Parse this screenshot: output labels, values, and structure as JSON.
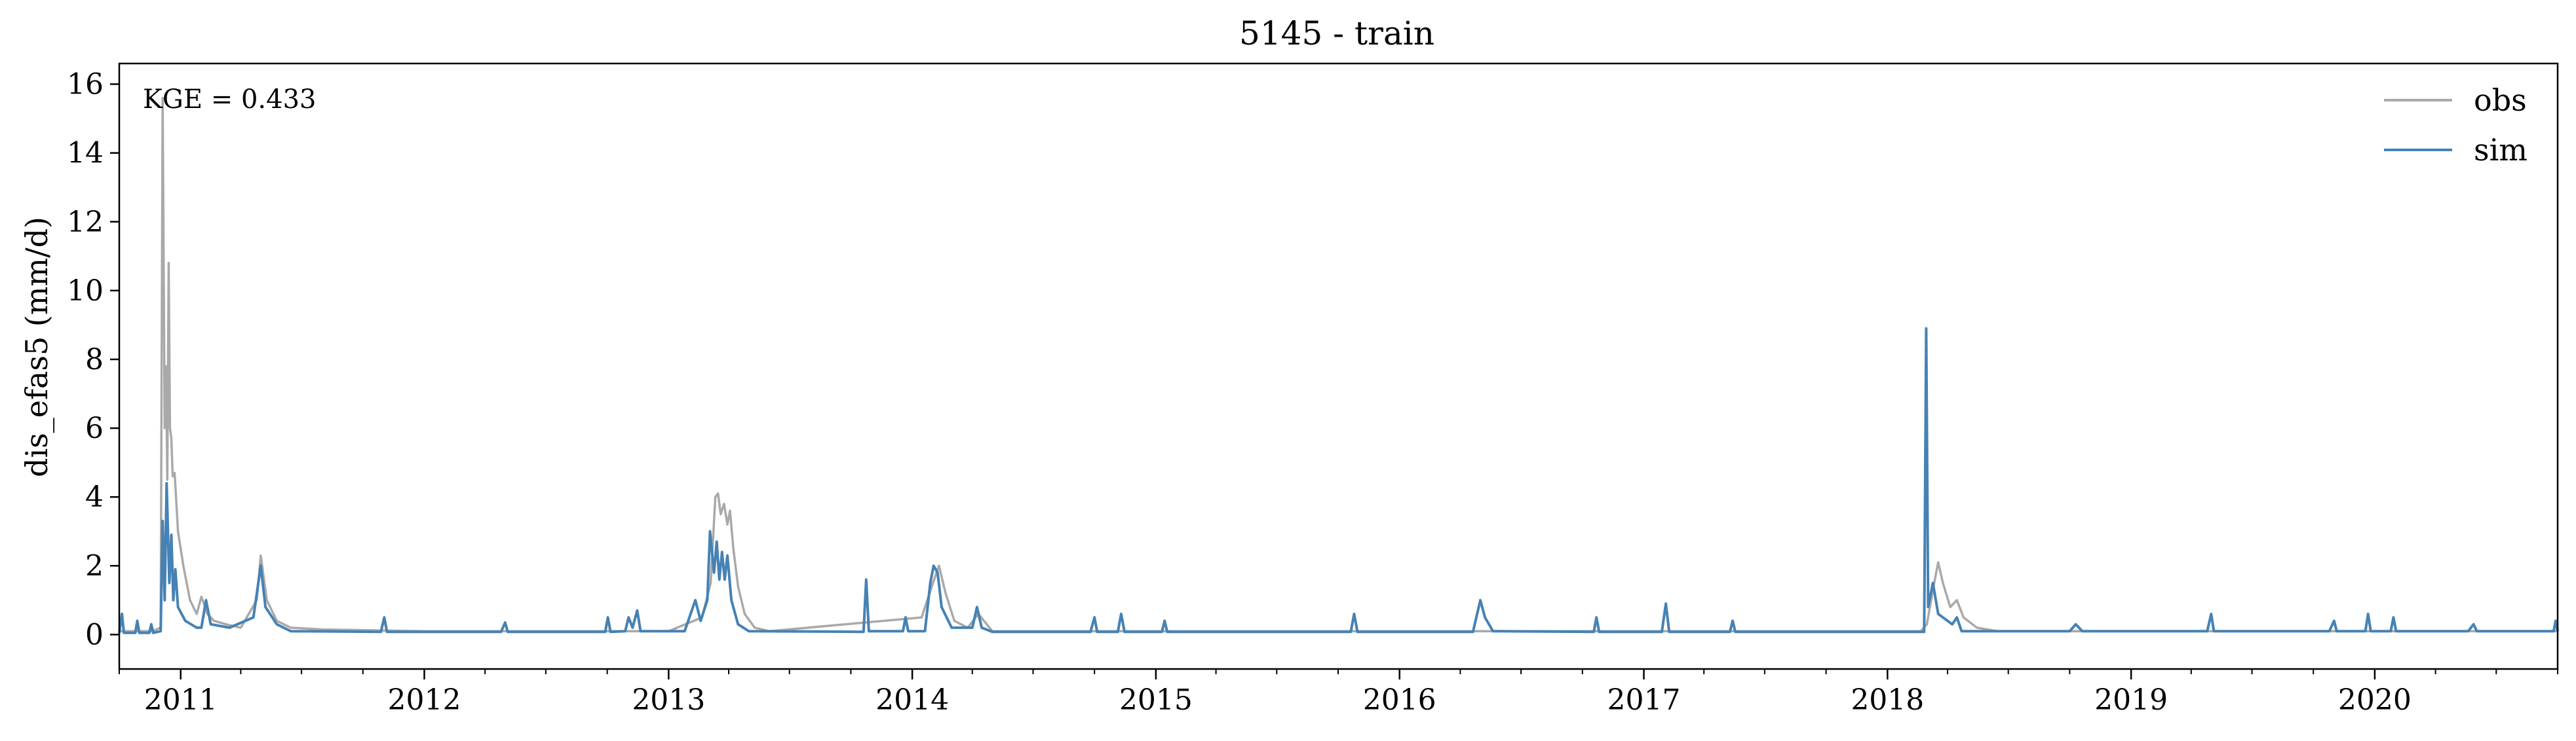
{
  "chart_data": {
    "type": "line",
    "title": "5145 - train",
    "ylabel": "dis_efas5 (mm/d)",
    "xlabel": "",
    "annotation": "KGE = 0.433",
    "xlim": [
      "2010-10-01",
      "2020-10-01"
    ],
    "ylim": [
      -1,
      16.6
    ],
    "yticks": [
      0,
      2,
      4,
      6,
      8,
      10,
      12,
      14,
      16
    ],
    "xticks": [
      {
        "date": "2011-01-01",
        "label": "2011"
      },
      {
        "date": "2012-01-01",
        "label": "2012"
      },
      {
        "date": "2013-01-01",
        "label": "2013"
      },
      {
        "date": "2014-01-01",
        "label": "2014"
      },
      {
        "date": "2015-01-01",
        "label": "2015"
      },
      {
        "date": "2016-01-01",
        "label": "2016"
      },
      {
        "date": "2017-01-01",
        "label": "2017"
      },
      {
        "date": "2018-01-01",
        "label": "2018"
      },
      {
        "date": "2019-01-01",
        "label": "2019"
      },
      {
        "date": "2020-01-01",
        "label": "2020"
      }
    ],
    "legend": {
      "position": "top-right"
    },
    "grid": false,
    "series": [
      {
        "name": "obs",
        "color": "#a9a9a9",
        "points": [
          [
            "2010-10-01",
            0.1
          ],
          [
            "2010-10-20",
            0.1
          ],
          [
            "2010-11-20",
            0.1
          ],
          [
            "2010-12-02",
            0.2
          ],
          [
            "2010-12-05",
            15.6
          ],
          [
            "2010-12-08",
            6.0
          ],
          [
            "2010-12-10",
            7.8
          ],
          [
            "2010-12-12",
            4.5
          ],
          [
            "2010-12-14",
            10.8
          ],
          [
            "2010-12-16",
            6.0
          ],
          [
            "2010-12-18",
            5.7
          ],
          [
            "2010-12-20",
            4.6
          ],
          [
            "2010-12-23",
            4.7
          ],
          [
            "2010-12-28",
            3.0
          ],
          [
            "2011-01-05",
            2.0
          ],
          [
            "2011-01-15",
            1.0
          ],
          [
            "2011-01-25",
            0.6
          ],
          [
            "2011-02-01",
            1.1
          ],
          [
            "2011-02-10",
            0.6
          ],
          [
            "2011-02-20",
            0.4
          ],
          [
            "2011-03-10",
            0.3
          ],
          [
            "2011-04-01",
            0.2
          ],
          [
            "2011-04-25",
            1.0
          ],
          [
            "2011-05-01",
            2.3
          ],
          [
            "2011-05-10",
            1.0
          ],
          [
            "2011-05-25",
            0.4
          ],
          [
            "2011-06-15",
            0.2
          ],
          [
            "2011-08-01",
            0.15
          ],
          [
            "2012-01-01",
            0.1
          ],
          [
            "2012-06-01",
            0.1
          ],
          [
            "2013-01-01",
            0.1
          ],
          [
            "2013-02-20",
            0.5
          ],
          [
            "2013-03-05",
            1.5
          ],
          [
            "2013-03-12",
            4.0
          ],
          [
            "2013-03-16",
            4.1
          ],
          [
            "2013-03-20",
            3.5
          ],
          [
            "2013-03-25",
            3.8
          ],
          [
            "2013-03-30",
            3.2
          ],
          [
            "2013-04-03",
            3.6
          ],
          [
            "2013-04-08",
            2.5
          ],
          [
            "2013-04-15",
            1.4
          ],
          [
            "2013-04-25",
            0.6
          ],
          [
            "2013-05-10",
            0.2
          ],
          [
            "2013-06-01",
            0.1
          ],
          [
            "2014-01-15",
            0.5
          ],
          [
            "2014-02-01",
            1.5
          ],
          [
            "2014-02-10",
            2.0
          ],
          [
            "2014-02-20",
            1.2
          ],
          [
            "2014-03-05",
            0.4
          ],
          [
            "2014-03-25",
            0.2
          ],
          [
            "2014-04-10",
            0.6
          ],
          [
            "2014-05-01",
            0.1
          ],
          [
            "2018-02-20",
            0.1
          ],
          [
            "2018-03-01",
            0.3
          ],
          [
            "2018-03-12",
            1.5
          ],
          [
            "2018-03-18",
            2.1
          ],
          [
            "2018-03-25",
            1.5
          ],
          [
            "2018-04-05",
            0.8
          ],
          [
            "2018-04-15",
            1.0
          ],
          [
            "2018-04-25",
            0.5
          ],
          [
            "2018-05-15",
            0.2
          ],
          [
            "2018-06-15",
            0.1
          ],
          [
            "2019-01-01",
            0.1
          ],
          [
            "2020-10-01",
            0.1
          ]
        ]
      },
      {
        "name": "sim",
        "color": "#4682b4",
        "points": [
          [
            "2010-10-01",
            0.05
          ],
          [
            "2010-10-05",
            0.6
          ],
          [
            "2010-10-08",
            0.05
          ],
          [
            "2010-10-25",
            0.05
          ],
          [
            "2010-10-28",
            0.4
          ],
          [
            "2010-10-31",
            0.05
          ],
          [
            "2010-11-15",
            0.05
          ],
          [
            "2010-11-18",
            0.3
          ],
          [
            "2010-11-21",
            0.05
          ],
          [
            "2010-12-02",
            0.1
          ],
          [
            "2010-12-05",
            3.3
          ],
          [
            "2010-12-08",
            1.0
          ],
          [
            "2010-12-11",
            4.4
          ],
          [
            "2010-12-15",
            1.5
          ],
          [
            "2010-12-18",
            2.9
          ],
          [
            "2010-12-21",
            1.0
          ],
          [
            "2010-12-24",
            1.9
          ],
          [
            "2010-12-28",
            0.8
          ],
          [
            "2011-01-08",
            0.4
          ],
          [
            "2011-01-25",
            0.2
          ],
          [
            "2011-02-01",
            0.2
          ],
          [
            "2011-02-08",
            1.0
          ],
          [
            "2011-02-15",
            0.3
          ],
          [
            "2011-03-15",
            0.2
          ],
          [
            "2011-04-20",
            0.5
          ],
          [
            "2011-05-01",
            2.0
          ],
          [
            "2011-05-08",
            0.8
          ],
          [
            "2011-05-25",
            0.3
          ],
          [
            "2011-06-15",
            0.1
          ],
          [
            "2011-10-28",
            0.08
          ],
          [
            "2011-11-02",
            0.5
          ],
          [
            "2011-11-06",
            0.08
          ],
          [
            "2012-04-25",
            0.08
          ],
          [
            "2012-05-01",
            0.35
          ],
          [
            "2012-05-05",
            0.08
          ],
          [
            "2012-09-28",
            0.08
          ],
          [
            "2012-10-02",
            0.5
          ],
          [
            "2012-10-06",
            0.08
          ],
          [
            "2012-10-28",
            0.1
          ],
          [
            "2012-11-02",
            0.5
          ],
          [
            "2012-11-08",
            0.2
          ],
          [
            "2012-11-15",
            0.7
          ],
          [
            "2012-11-20",
            0.1
          ],
          [
            "2013-01-25",
            0.1
          ],
          [
            "2013-02-10",
            1.0
          ],
          [
            "2013-02-18",
            0.4
          ],
          [
            "2013-02-28",
            1.0
          ],
          [
            "2013-03-04",
            3.0
          ],
          [
            "2013-03-10",
            1.8
          ],
          [
            "2013-03-14",
            2.7
          ],
          [
            "2013-03-18",
            1.6
          ],
          [
            "2013-03-22",
            2.4
          ],
          [
            "2013-03-26",
            1.6
          ],
          [
            "2013-03-30",
            2.3
          ],
          [
            "2013-04-05",
            1.0
          ],
          [
            "2013-04-15",
            0.3
          ],
          [
            "2013-05-01",
            0.1
          ],
          [
            "2013-10-20",
            0.08
          ],
          [
            "2013-10-24",
            1.6
          ],
          [
            "2013-10-28",
            0.1
          ],
          [
            "2013-12-18",
            0.1
          ],
          [
            "2013-12-22",
            0.5
          ],
          [
            "2013-12-26",
            0.1
          ],
          [
            "2014-01-20",
            0.1
          ],
          [
            "2014-01-28",
            1.5
          ],
          [
            "2014-02-02",
            2.0
          ],
          [
            "2014-02-08",
            1.8
          ],
          [
            "2014-02-14",
            0.8
          ],
          [
            "2014-03-01",
            0.2
          ],
          [
            "2014-04-01",
            0.2
          ],
          [
            "2014-04-08",
            0.8
          ],
          [
            "2014-04-15",
            0.2
          ],
          [
            "2014-05-01",
            0.08
          ],
          [
            "2014-09-25",
            0.08
          ],
          [
            "2014-10-01",
            0.5
          ],
          [
            "2014-10-05",
            0.08
          ],
          [
            "2014-11-05",
            0.08
          ],
          [
            "2014-11-10",
            0.6
          ],
          [
            "2014-11-15",
            0.08
          ],
          [
            "2015-01-10",
            0.08
          ],
          [
            "2015-01-14",
            0.4
          ],
          [
            "2015-01-18",
            0.08
          ],
          [
            "2015-10-20",
            0.08
          ],
          [
            "2015-10-25",
            0.6
          ],
          [
            "2015-10-30",
            0.08
          ],
          [
            "2016-04-20",
            0.08
          ],
          [
            "2016-05-01",
            1.0
          ],
          [
            "2016-05-08",
            0.5
          ],
          [
            "2016-05-20",
            0.1
          ],
          [
            "2016-10-18",
            0.08
          ],
          [
            "2016-10-22",
            0.5
          ],
          [
            "2016-10-26",
            0.08
          ],
          [
            "2017-01-28",
            0.08
          ],
          [
            "2017-02-03",
            0.9
          ],
          [
            "2017-02-08",
            0.08
          ],
          [
            "2017-05-10",
            0.08
          ],
          [
            "2017-05-14",
            0.4
          ],
          [
            "2017-05-18",
            0.08
          ],
          [
            "2018-02-25",
            0.08
          ],
          [
            "2018-02-28",
            8.9
          ],
          [
            "2018-03-03",
            0.8
          ],
          [
            "2018-03-10",
            1.5
          ],
          [
            "2018-03-18",
            0.6
          ],
          [
            "2018-04-08",
            0.3
          ],
          [
            "2018-04-15",
            0.5
          ],
          [
            "2018-04-22",
            0.1
          ],
          [
            "2018-10-01",
            0.1
          ],
          [
            "2018-10-10",
            0.3
          ],
          [
            "2018-10-20",
            0.1
          ],
          [
            "2019-04-25",
            0.1
          ],
          [
            "2019-05-01",
            0.6
          ],
          [
            "2019-05-05",
            0.1
          ],
          [
            "2019-10-25",
            0.1
          ],
          [
            "2019-11-01",
            0.4
          ],
          [
            "2019-11-05",
            0.1
          ],
          [
            "2019-12-18",
            0.1
          ],
          [
            "2019-12-22",
            0.6
          ],
          [
            "2019-12-26",
            0.1
          ],
          [
            "2020-01-25",
            0.1
          ],
          [
            "2020-01-29",
            0.5
          ],
          [
            "2020-02-02",
            0.1
          ],
          [
            "2020-05-20",
            0.1
          ],
          [
            "2020-05-28",
            0.3
          ],
          [
            "2020-06-02",
            0.1
          ],
          [
            "2020-09-25",
            0.1
          ],
          [
            "2020-09-28",
            0.4
          ],
          [
            "2020-10-01",
            0.1
          ]
        ]
      }
    ]
  }
}
